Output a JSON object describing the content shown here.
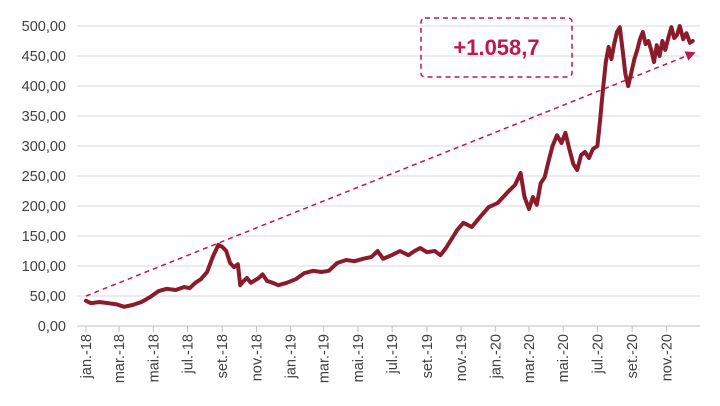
{
  "chart_data": {
    "type": "line",
    "title": "",
    "xlabel": "",
    "ylabel": "",
    "ylim": [
      0,
      500
    ],
    "grid": true,
    "legend": "none",
    "y_ticks": [
      "0,00",
      "50,00",
      "100,00",
      "150,00",
      "200,00",
      "250,00",
      "300,00",
      "350,00",
      "400,00",
      "450,00",
      "500,00"
    ],
    "x_ticks": [
      "jan.-18",
      "mar.-18",
      "mai.-18",
      "jul.-18",
      "set.-18",
      "nov.-18",
      "jan.-19",
      "mar.-19",
      "mai.-19",
      "jul.-19",
      "set.-19",
      "nov.-19",
      "jan.-20",
      "mar.-20",
      "mai.-20",
      "jul.-20",
      "set.-20",
      "nov.-20"
    ],
    "annotation": "+1.058,7",
    "trend": {
      "start": [
        "2018-01-01",
        50
      ],
      "end": [
        "2020-12-20",
        455
      ]
    },
    "series": [
      {
        "color": "#8B1A2B",
        "points": [
          [
            "2018-01-01",
            42
          ],
          [
            "2018-01-10",
            38
          ],
          [
            "2018-01-25",
            40
          ],
          [
            "2018-02-10",
            38
          ],
          [
            "2018-02-25",
            36
          ],
          [
            "2018-03-10",
            32
          ],
          [
            "2018-03-25",
            35
          ],
          [
            "2018-04-10",
            40
          ],
          [
            "2018-04-25",
            48
          ],
          [
            "2018-05-10",
            58
          ],
          [
            "2018-05-25",
            62
          ],
          [
            "2018-06-10",
            60
          ],
          [
            "2018-06-25",
            65
          ],
          [
            "2018-07-05",
            63
          ],
          [
            "2018-07-15",
            72
          ],
          [
            "2018-07-25",
            78
          ],
          [
            "2018-08-05",
            90
          ],
          [
            "2018-08-15",
            115
          ],
          [
            "2018-08-25",
            135
          ],
          [
            "2018-09-01",
            132
          ],
          [
            "2018-09-08",
            125
          ],
          [
            "2018-09-15",
            105
          ],
          [
            "2018-09-22",
            98
          ],
          [
            "2018-09-29",
            103
          ],
          [
            "2018-10-03",
            68
          ],
          [
            "2018-10-08",
            74
          ],
          [
            "2018-10-15",
            80
          ],
          [
            "2018-10-22",
            72
          ],
          [
            "2018-10-29",
            76
          ],
          [
            "2018-11-05",
            80
          ],
          [
            "2018-11-12",
            86
          ],
          [
            "2018-11-20",
            75
          ],
          [
            "2018-11-30",
            72
          ],
          [
            "2018-12-10",
            68
          ],
          [
            "2018-12-25",
            72
          ],
          [
            "2019-01-10",
            78
          ],
          [
            "2019-01-25",
            88
          ],
          [
            "2019-02-10",
            92
          ],
          [
            "2019-02-25",
            90
          ],
          [
            "2019-03-10",
            92
          ],
          [
            "2019-03-25",
            105
          ],
          [
            "2019-04-10",
            110
          ],
          [
            "2019-04-25",
            108
          ],
          [
            "2019-05-10",
            112
          ],
          [
            "2019-05-25",
            115
          ],
          [
            "2019-06-05",
            125
          ],
          [
            "2019-06-15",
            112
          ],
          [
            "2019-06-30",
            118
          ],
          [
            "2019-07-15",
            125
          ],
          [
            "2019-07-30",
            118
          ],
          [
            "2019-08-10",
            125
          ],
          [
            "2019-08-20",
            130
          ],
          [
            "2019-09-01",
            123
          ],
          [
            "2019-09-15",
            125
          ],
          [
            "2019-09-25",
            118
          ],
          [
            "2019-10-05",
            130
          ],
          [
            "2019-10-15",
            145
          ],
          [
            "2019-10-25",
            160
          ],
          [
            "2019-11-05",
            172
          ],
          [
            "2019-11-20",
            165
          ],
          [
            "2019-12-05",
            182
          ],
          [
            "2019-12-20",
            198
          ],
          [
            "2020-01-05",
            205
          ],
          [
            "2020-01-15",
            215
          ],
          [
            "2020-01-25",
            225
          ],
          [
            "2020-02-05",
            235
          ],
          [
            "2020-02-15",
            255
          ],
          [
            "2020-02-22",
            215
          ],
          [
            "2020-03-01",
            195
          ],
          [
            "2020-03-08",
            215
          ],
          [
            "2020-03-15",
            202
          ],
          [
            "2020-03-22",
            238
          ],
          [
            "2020-03-29",
            248
          ],
          [
            "2020-04-05",
            275
          ],
          [
            "2020-04-12",
            300
          ],
          [
            "2020-04-20",
            318
          ],
          [
            "2020-04-28",
            305
          ],
          [
            "2020-05-05",
            322
          ],
          [
            "2020-05-12",
            295
          ],
          [
            "2020-05-19",
            270
          ],
          [
            "2020-05-26",
            260
          ],
          [
            "2020-06-02",
            285
          ],
          [
            "2020-06-09",
            290
          ],
          [
            "2020-06-16",
            280
          ],
          [
            "2020-06-23",
            295
          ],
          [
            "2020-07-01",
            300
          ],
          [
            "2020-07-06",
            345
          ],
          [
            "2020-07-11",
            395
          ],
          [
            "2020-07-16",
            440
          ],
          [
            "2020-07-21",
            465
          ],
          [
            "2020-07-26",
            445
          ],
          [
            "2020-07-31",
            470
          ],
          [
            "2020-08-05",
            490
          ],
          [
            "2020-08-10",
            498
          ],
          [
            "2020-08-15",
            460
          ],
          [
            "2020-08-20",
            420
          ],
          [
            "2020-08-25",
            400
          ],
          [
            "2020-08-30",
            420
          ],
          [
            "2020-09-05",
            445
          ],
          [
            "2020-09-10",
            460
          ],
          [
            "2020-09-15",
            478
          ],
          [
            "2020-09-20",
            490
          ],
          [
            "2020-09-25",
            470
          ],
          [
            "2020-09-30",
            475
          ],
          [
            "2020-10-05",
            460
          ],
          [
            "2020-10-10",
            440
          ],
          [
            "2020-10-15",
            468
          ],
          [
            "2020-10-20",
            450
          ],
          [
            "2020-10-25",
            475
          ],
          [
            "2020-10-30",
            460
          ],
          [
            "2020-11-05",
            482
          ],
          [
            "2020-11-10",
            498
          ],
          [
            "2020-11-15",
            480
          ],
          [
            "2020-11-20",
            485
          ],
          [
            "2020-11-25",
            500
          ],
          [
            "2020-12-01",
            478
          ],
          [
            "2020-12-07",
            488
          ],
          [
            "2020-12-13",
            472
          ],
          [
            "2020-12-18",
            475
          ]
        ]
      }
    ]
  }
}
